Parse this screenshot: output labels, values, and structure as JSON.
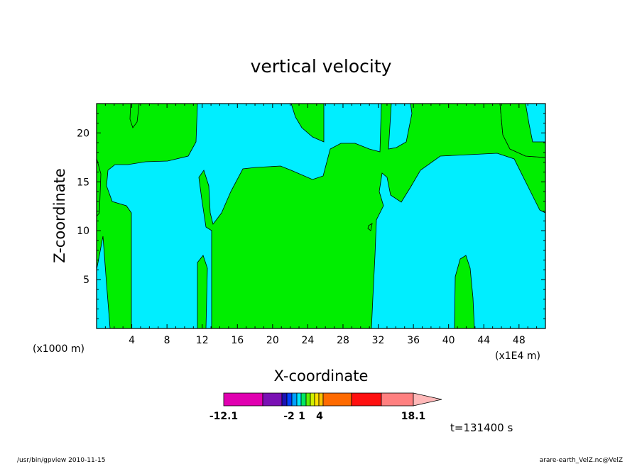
{
  "chart_data": {
    "type": "heatmap",
    "title": "vertical velocity",
    "xlabel": "X-coordinate",
    "ylabel": "Z-coordinate",
    "x_unit_left": "(x1000 m)",
    "x_unit_right": "(x1E4 m)",
    "xlim": [
      0,
      51
    ],
    "ylim": [
      0,
      23
    ],
    "x_ticks": [
      4,
      8,
      12,
      16,
      20,
      24,
      28,
      32,
      36,
      40,
      44,
      48
    ],
    "y_ticks": [
      5,
      10,
      15,
      20
    ],
    "colorbar": {
      "colors": [
        "#e000b0",
        "#7a10b4",
        "#1c12b4",
        "#0040ff",
        "#00a0ff",
        "#00e8ff",
        "#00e860",
        "#60f000",
        "#d0f000",
        "#ffe000",
        "#ffc000",
        "#ff6a00",
        "#ff1010",
        "#ff8080",
        "#ffb8b8"
      ],
      "labels": [
        "-12.1",
        "-2",
        "1",
        "4",
        "18.1"
      ]
    },
    "fill_colors": {
      "negative": "#00eeff",
      "positive": "#00ee00"
    },
    "time_label": "t=131400 s"
  },
  "footer": {
    "left": "/usr/bin/gpview   2010-11-15",
    "right": "arare-earth_VelZ.nc@VelZ"
  }
}
